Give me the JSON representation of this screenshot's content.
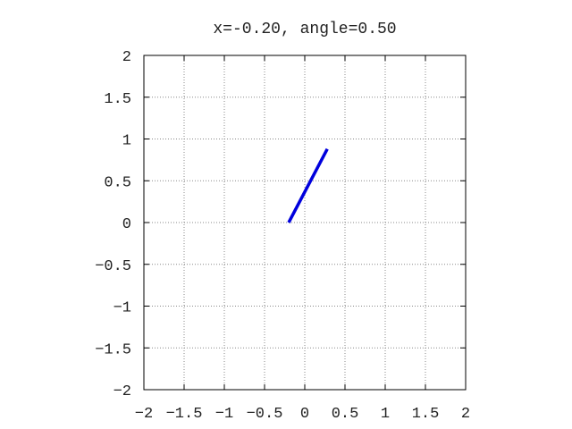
{
  "chart_data": {
    "type": "line",
    "title": "x=-0.20, angle=0.50",
    "xlabel": "",
    "ylabel": "",
    "xlim": [
      -2,
      2
    ],
    "ylim": [
      -2,
      2
    ],
    "grid": true,
    "x_ticks": [
      -2,
      -1.5,
      -1,
      -0.5,
      0,
      0.5,
      1,
      1.5,
      2
    ],
    "y_ticks": [
      -2,
      -1.5,
      -1,
      -0.5,
      0,
      0.5,
      1,
      1.5,
      2
    ],
    "x_tick_labels": [
      "−2",
      "−1.5",
      "−1",
      "−0.5",
      "0",
      "0.5",
      "1",
      "1.5",
      "2"
    ],
    "y_tick_labels": [
      "−2",
      "−1.5",
      "−1",
      "−0.5",
      "0",
      "0.5",
      "1",
      "1.5",
      "2"
    ],
    "series": [
      {
        "color": "#0000dd",
        "x": [
          -0.2,
          0.28
        ],
        "y": [
          0.0,
          0.88
        ]
      }
    ]
  }
}
